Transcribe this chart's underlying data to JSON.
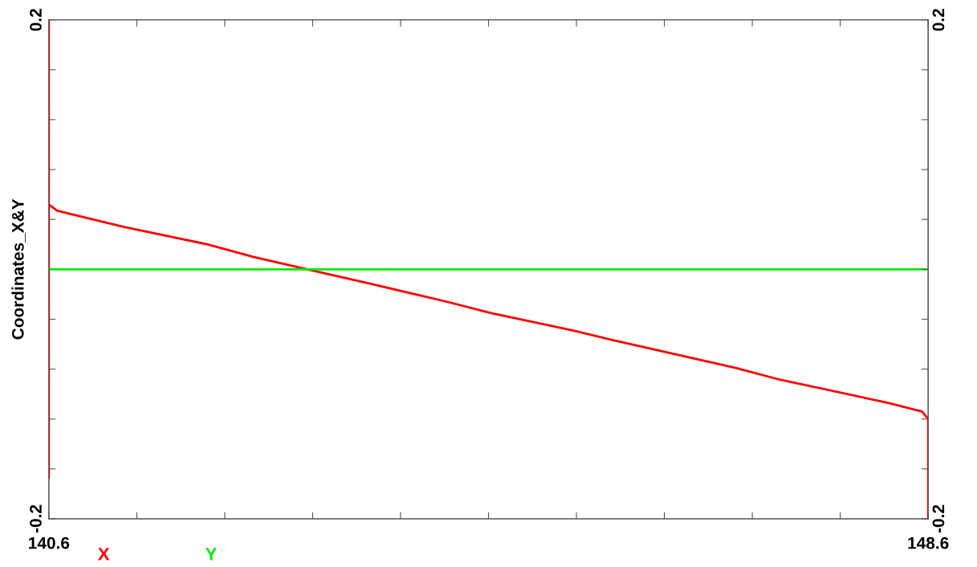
{
  "chart_data": {
    "type": "line",
    "ylabel": "Coordinates_X&Y",
    "series": [
      {
        "name": "X",
        "color": "#ff0000",
        "x": [
          140.6,
          140.6,
          140.6,
          140.676,
          141.285,
          142.045,
          142.46,
          143.151,
          143.497,
          144.223,
          144.617,
          145.364,
          145.744,
          146.85,
          147.231,
          148.234,
          148.545,
          148.6,
          148.6
        ],
        "values": [
          -0.167,
          0.2,
          0.052,
          0.047,
          0.034,
          0.02,
          0.01,
          -0.004,
          -0.011,
          -0.026,
          -0.035,
          -0.049,
          -0.057,
          -0.079,
          -0.088,
          -0.107,
          -0.114,
          -0.12,
          -0.2
        ]
      },
      {
        "name": "Y",
        "color": "#00ee00",
        "x": [
          140.6,
          148.6
        ],
        "values": [
          0,
          0
        ]
      }
    ],
    "xlim": [
      140.6,
      148.6
    ],
    "xticks": [
      140.6,
      {
        "value": 141.4,
        "label": null
      },
      {
        "value": 142.2,
        "label": null
      },
      {
        "value": 143.0,
        "label": null
      },
      {
        "value": 143.8,
        "label": null
      },
      {
        "value": 144.6,
        "label": null
      },
      {
        "value": 145.4,
        "label": null
      },
      {
        "value": 146.2,
        "label": null
      },
      {
        "value": 147.0,
        "label": null
      },
      {
        "value": 147.8,
        "label": null
      },
      148.6
    ],
    "ylim": [
      -0.2,
      0.2
    ],
    "yticks": [
      -0.2,
      {
        "value": -0.16,
        "label": null
      },
      {
        "value": -0.12,
        "label": null
      },
      {
        "value": -0.08,
        "label": null
      },
      {
        "value": -0.04,
        "label": null
      },
      {
        "value": 0,
        "label": null
      },
      {
        "value": 0.04,
        "label": null
      },
      {
        "value": 0.08,
        "label": null
      },
      {
        "value": 0.12,
        "label": null
      },
      {
        "value": 0.16,
        "label": null
      },
      0.2
    ],
    "y2lim": [
      -0.2,
      0.2
    ],
    "y2ticks": [
      -0.2,
      {
        "value": -0.16,
        "label": null
      },
      {
        "value": -0.12,
        "label": null
      },
      {
        "value": -0.08,
        "label": null
      },
      {
        "value": -0.04,
        "label": null
      },
      {
        "value": 0,
        "label": null
      },
      {
        "value": 0.04,
        "label": null
      },
      {
        "value": 0.08,
        "label": null
      },
      {
        "value": 0.12,
        "label": null
      },
      {
        "value": 0.16,
        "label": null
      },
      0.2
    ],
    "grid": false,
    "legend": "bottom"
  }
}
